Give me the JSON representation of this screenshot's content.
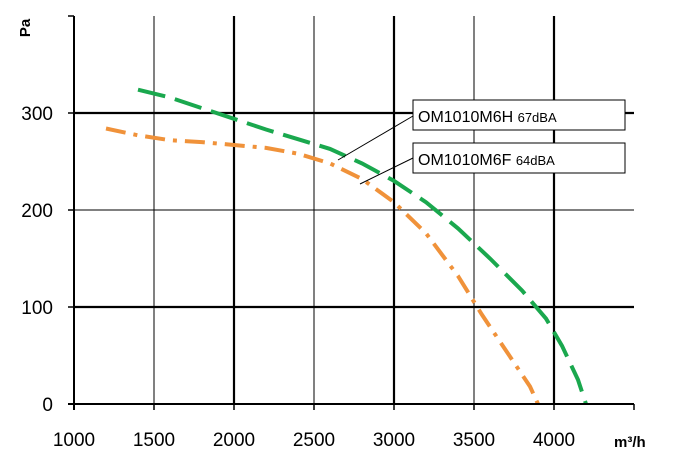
{
  "chart_data": {
    "type": "line",
    "xlabel": "m³/h",
    "ylabel": "Pa",
    "xlim": [
      1000,
      4500
    ],
    "ylim": [
      0,
      400
    ],
    "x_ticks": [
      1000,
      1500,
      2000,
      2500,
      3000,
      3500,
      4000
    ],
    "y_ticks": [
      0,
      100,
      200,
      300
    ],
    "grid": true,
    "series": [
      {
        "name": "OM1010M6H",
        "annotation": "67dBA",
        "color": "#1aa84e",
        "dash": "long-dash",
        "points": [
          [
            1400,
            324
          ],
          [
            1600,
            316
          ],
          [
            1800,
            305
          ],
          [
            2000,
            294
          ],
          [
            2200,
            283
          ],
          [
            2400,
            273
          ],
          [
            2600,
            263
          ],
          [
            2800,
            248
          ],
          [
            3000,
            230
          ],
          [
            3200,
            208
          ],
          [
            3400,
            181
          ],
          [
            3600,
            150
          ],
          [
            3800,
            117
          ],
          [
            3950,
            88
          ],
          [
            4050,
            60
          ],
          [
            4150,
            25
          ],
          [
            4200,
            0
          ]
        ]
      },
      {
        "name": "OM1010M6F",
        "annotation": "64dBA",
        "color": "#f0923a",
        "dash": "dash-dot",
        "points": [
          [
            1200,
            284
          ],
          [
            1400,
            277
          ],
          [
            1600,
            272
          ],
          [
            1800,
            270
          ],
          [
            2000,
            267
          ],
          [
            2200,
            264
          ],
          [
            2400,
            258
          ],
          [
            2600,
            248
          ],
          [
            2800,
            232
          ],
          [
            3000,
            208
          ],
          [
            3200,
            176
          ],
          [
            3400,
            132
          ],
          [
            3550,
            92
          ],
          [
            3700,
            55
          ],
          [
            3850,
            18
          ],
          [
            3900,
            0
          ]
        ]
      }
    ]
  }
}
